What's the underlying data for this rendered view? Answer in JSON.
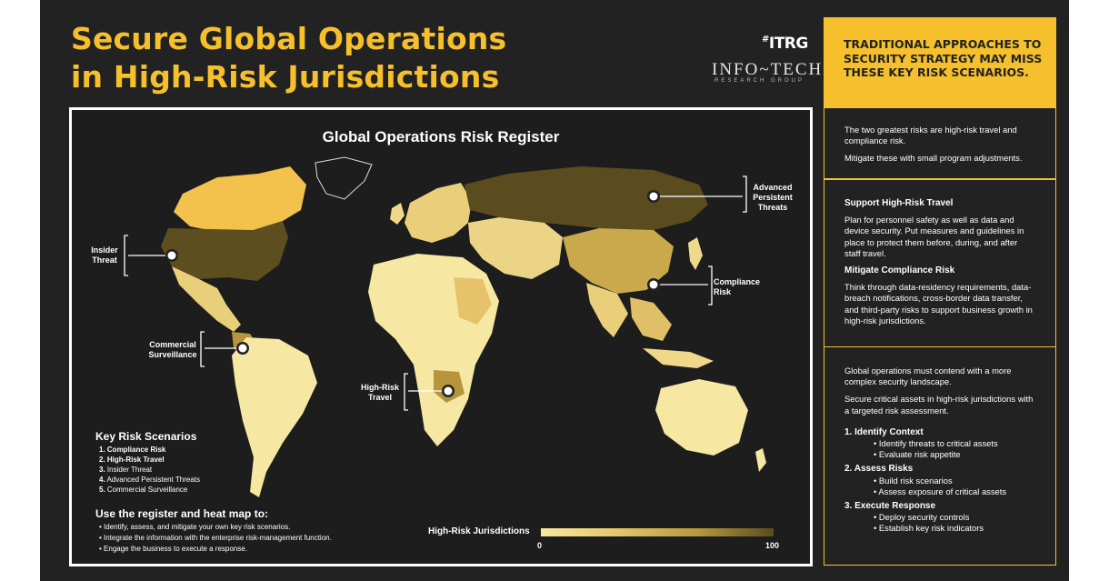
{
  "header": {
    "title_line1": "Secure Global Operations",
    "title_line2": "in High-Risk Jurisdictions",
    "brand_itrg": "ITRG",
    "brand_infotech": "INFO~TECH",
    "brand_research": "RESEARCH GROUP"
  },
  "map": {
    "title": "Global Operations Risk Register",
    "callouts": [
      {
        "id": "advanced-persistent-threats",
        "label": "Advanced Persistent Threats"
      },
      {
        "id": "insider-threat",
        "label": "Insider Threat"
      },
      {
        "id": "compliance-risk",
        "label": "Compliance Risk"
      },
      {
        "id": "commercial-surveillance",
        "label": "Commercial Surveillance"
      },
      {
        "id": "high-risk-travel",
        "label": "High-Risk Travel"
      }
    ],
    "key_risk_title": "Key Risk Scenarios",
    "key_risks": [
      {
        "n": "1.",
        "label": "Compliance Risk",
        "bold": true
      },
      {
        "n": "2.",
        "label": "High-Risk Travel",
        "bold": true
      },
      {
        "n": "3.",
        "label": "Insider Threat",
        "bold": false
      },
      {
        "n": "4.",
        "label": "Advanced Persistent Threats",
        "bold": false
      },
      {
        "n": "5.",
        "label": "Commercial Surveillance",
        "bold": false
      }
    ],
    "use_title": "Use the register and heat map to:",
    "use_items": [
      "Identify, assess, and mitigate your own key risk scenarios.",
      "Integrate the information with the enterprise risk-management function.",
      "Engage the business to execute a response."
    ],
    "legend": {
      "label": "High-Risk Jurisdictions",
      "min": "0",
      "max": "100"
    }
  },
  "sidebar": {
    "heading": "TRADITIONAL APPROACHES TO SECURITY STRATEGY MAY MISS THESE KEY RISK SCENARIOS.",
    "box1": {
      "p1": "The two greatest risks are high-risk travel and compliance risk.",
      "p2": "Mitigate these with small program adjustments."
    },
    "box2": {
      "h1": "Support High-Risk Travel",
      "p1": "Plan for personnel safety as well as data and device security. Put measures and guidelines in place to protect them before, during, and after staff travel.",
      "h2": "Mitigate Compliance Risk",
      "p2": "Think through data-residency requirements, data-breach notifications, cross-border data transfer, and third-party risks to support business growth in high-risk jurisdictions."
    },
    "box3": {
      "p1": "Global operations must contend with a more complex security landscape.",
      "p2": "Secure critical assets in high-risk jurisdictions with a targeted risk assessment.",
      "steps": [
        {
          "title": "1.  Identify Context",
          "items": [
            "Identify threats to critical assets",
            "Evaluate risk appetite"
          ]
        },
        {
          "title": "2.  Assess Risks",
          "items": [
            "Build risk scenarios",
            "Assess exposure of critical assets"
          ]
        },
        {
          "title": "3.  Execute Response",
          "items": [
            "Deploy security controls",
            "Establish key risk indicators"
          ]
        }
      ]
    }
  },
  "colors": {
    "accent": "#f6c02c",
    "background": "#222222",
    "low_risk": "#f8e7a0",
    "high_risk": "#5a4c1f"
  }
}
